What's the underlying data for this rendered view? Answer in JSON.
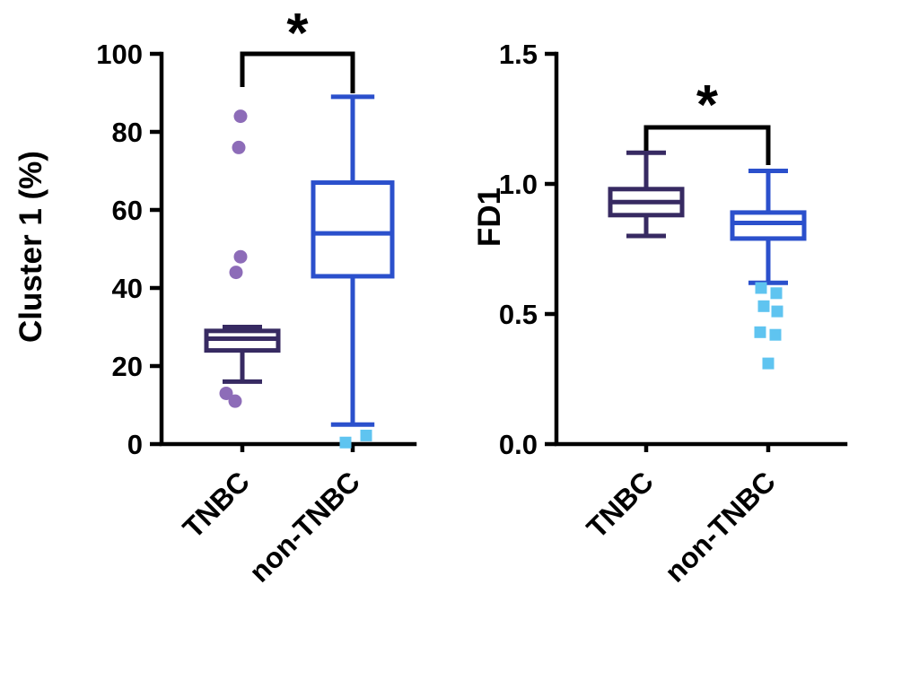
{
  "figure": {
    "background": "#ffffff",
    "axis_color": "#000000"
  },
  "chart_data": [
    {
      "type": "box",
      "title": "",
      "xlabel": "",
      "ylabel": "Cluster 1 (%)",
      "ylim": [
        0,
        100
      ],
      "yticks": [
        0,
        20,
        40,
        60,
        80,
        100
      ],
      "ytick_labels": [
        "0",
        "20",
        "40",
        "60",
        "80",
        "100"
      ],
      "categories": [
        "TNBC",
        "non-TNBC"
      ],
      "significance": "*",
      "boxes": [
        {
          "category": "TNBC",
          "color": "#372a62",
          "whisker_low": 16,
          "q1": 24,
          "median": 27,
          "q3": 29,
          "whisker_high": 30,
          "outliers": {
            "shape": "circle",
            "color": "#8d6cb8",
            "values": [
              84,
              76,
              48,
              44,
              13,
              11
            ],
            "jitter": [
              -2,
              -4,
              -2,
              -7,
              -18,
              -8
            ]
          }
        },
        {
          "category": "non-TNBC",
          "color": "#2b50cc",
          "whisker_low": 5,
          "q1": 43,
          "median": 54,
          "q3": 67,
          "whisker_high": 89,
          "outliers": {
            "shape": "square",
            "color": "#5fc4f0",
            "values": [
              2.2,
              0.4
            ],
            "jitter": [
              15,
              -8
            ]
          }
        }
      ]
    },
    {
      "type": "box",
      "title": "",
      "xlabel": "",
      "ylabel": "FD1",
      "ylim": [
        0,
        1.5
      ],
      "yticks": [
        0,
        0.5,
        1.0,
        1.5
      ],
      "ytick_labels": [
        "0.0",
        "0.5",
        "1.0",
        "1.5"
      ],
      "categories": [
        "TNBC",
        "non-TNBC"
      ],
      "significance": "*",
      "boxes": [
        {
          "category": "TNBC",
          "color": "#372a62",
          "whisker_low": 0.8,
          "q1": 0.88,
          "median": 0.93,
          "q3": 0.98,
          "whisker_high": 1.12,
          "outliers": null
        },
        {
          "category": "non-TNBC",
          "color": "#2b50cc",
          "whisker_low": 0.62,
          "q1": 0.79,
          "median": 0.85,
          "q3": 0.89,
          "whisker_high": 1.05,
          "outliers": {
            "shape": "square",
            "color": "#5fc4f0",
            "values": [
              0.6,
              0.58,
              0.53,
              0.51,
              0.43,
              0.42,
              0.31
            ],
            "jitter": [
              -8,
              9,
              -5,
              10,
              -9,
              8,
              0
            ]
          }
        }
      ]
    }
  ]
}
